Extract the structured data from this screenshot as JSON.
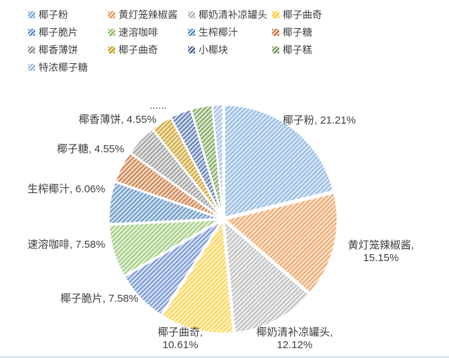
{
  "chart_data": {
    "type": "pie",
    "title": "",
    "legend_position": "top",
    "start_angle_deg": 0,
    "direction": "clockwise",
    "overflow_annotation": "......",
    "series": [
      {
        "name": "椰子粉",
        "percent": 21.21,
        "data_label": "椰子粉, 21.21%",
        "labeled": true,
        "color": "#5B9BD5",
        "hatch_bg": "#D9E6F5",
        "hatch_stripe": "#8FB8E0"
      },
      {
        "name": "黄灯笼辣椒酱",
        "percent": 15.15,
        "data_label": "黄灯笼辣椒酱, 15.15%",
        "labeled": true,
        "color": "#ED7D31",
        "hatch_bg": "#FAE3CD",
        "hatch_stripe": "#F0A164"
      },
      {
        "name": "椰奶清补凉罐头",
        "percent": 12.12,
        "data_label": "椰奶清补凉罐头, 12.12%",
        "labeled": true,
        "color": "#A5A5A5",
        "hatch_bg": "#EDEDED",
        "hatch_stripe": "#BBBBBB"
      },
      {
        "name": "椰子曲奇",
        "percent": 10.61,
        "data_label": "椰子曲奇, 10.61%",
        "labeled": true,
        "color": "#FFC000",
        "hatch_bg": "#FFF1C5",
        "hatch_stripe": "#FFD24A"
      },
      {
        "name": "椰子脆片",
        "percent": 7.58,
        "data_label": "椰子脆片, 7.58%",
        "labeled": true,
        "color": "#4472C4",
        "hatch_bg": "#D5DFF3",
        "hatch_stripe": "#6E8FD2"
      },
      {
        "name": "速溶咖啡",
        "percent": 7.58,
        "data_label": "速溶咖啡, 7.58%",
        "labeled": true,
        "color": "#70AD47",
        "hatch_bg": "#E4F0DA",
        "hatch_stripe": "#9BCA7A"
      },
      {
        "name": "生榨椰汁",
        "percent": 6.06,
        "data_label": "生榨椰汁, 6.06%",
        "labeled": true,
        "color": "#2E75B6",
        "hatch_bg": "#CFDFEE",
        "hatch_stripe": "#6492C4"
      },
      {
        "name": "椰子糖",
        "percent": 4.55,
        "data_label": "椰子糖, 4.55%",
        "labeled": true,
        "color": "#C55A11",
        "hatch_bg": "#F1D9C6",
        "hatch_stripe": "#CA7940"
      },
      {
        "name": "椰香薄饼",
        "percent": 4.55,
        "data_label": "椰香薄饼, 4.55%",
        "labeled": true,
        "color": "#7B7B7B",
        "hatch_bg": "#E2E2E2",
        "hatch_stripe": "#999999"
      },
      {
        "name": "椰子曲奇",
        "percent": 3.03,
        "data_label": "",
        "labeled": false,
        "color": "#BF8F00",
        "hatch_bg": "#F2E3B2",
        "hatch_stripe": "#C7A139"
      },
      {
        "name": "小椰块",
        "percent": 3.03,
        "data_label": "",
        "labeled": false,
        "color": "#264478",
        "hatch_bg": "#D2DBEC",
        "hatch_stripe": "#5673AE"
      },
      {
        "name": "椰子糕",
        "percent": 3.03,
        "data_label": "",
        "labeled": false,
        "color": "#548235",
        "hatch_bg": "#DCE8D0",
        "hatch_stripe": "#7AA35B"
      },
      {
        "name": "特浓椰子糖",
        "percent": 1.52,
        "data_label": "",
        "labeled": false,
        "color": "#8FAADC",
        "hatch_bg": "#E2EAF7",
        "hatch_stripe": "#A3BBE5"
      }
    ]
  },
  "legend": {
    "items": [
      {
        "label": "椰子粉"
      },
      {
        "label": "黄灯笼辣椒酱"
      },
      {
        "label": "椰奶清补凉罐头"
      },
      {
        "label": "椰子曲奇"
      },
      {
        "label": "椰子脆片"
      },
      {
        "label": "速溶咖啡"
      },
      {
        "label": "生榨椰汁"
      },
      {
        "label": "椰子糖"
      },
      {
        "label": "椰香薄饼"
      },
      {
        "label": "椰子曲奇"
      },
      {
        "label": "小椰块"
      },
      {
        "label": "椰子糕"
      },
      {
        "label": "特浓椰子糖"
      }
    ]
  },
  "callouts": [
    {
      "slice": 0,
      "lines": [
        "椰子粉, 21.21%"
      ]
    },
    {
      "slice": 1,
      "lines": [
        "黄灯笼辣椒酱,",
        "15.15%"
      ]
    },
    {
      "slice": 2,
      "lines": [
        "椰奶清补凉罐头,",
        "12.12%"
      ]
    },
    {
      "slice": 3,
      "lines": [
        "椰子曲奇,",
        "10.61%"
      ]
    },
    {
      "slice": 4,
      "lines": [
        "椰子脆片, 7.58%"
      ]
    },
    {
      "slice": 5,
      "lines": [
        "速溶咖啡, 7.58%"
      ]
    },
    {
      "slice": 6,
      "lines": [
        "生榨椰汁, 6.06%"
      ]
    },
    {
      "slice": 7,
      "lines": [
        "椰子糖, 4.55%"
      ]
    },
    {
      "slice": 8,
      "lines": [
        "椰香薄饼, 4.55%"
      ]
    },
    {
      "slice": -1,
      "lines": [
        "......"
      ]
    }
  ]
}
